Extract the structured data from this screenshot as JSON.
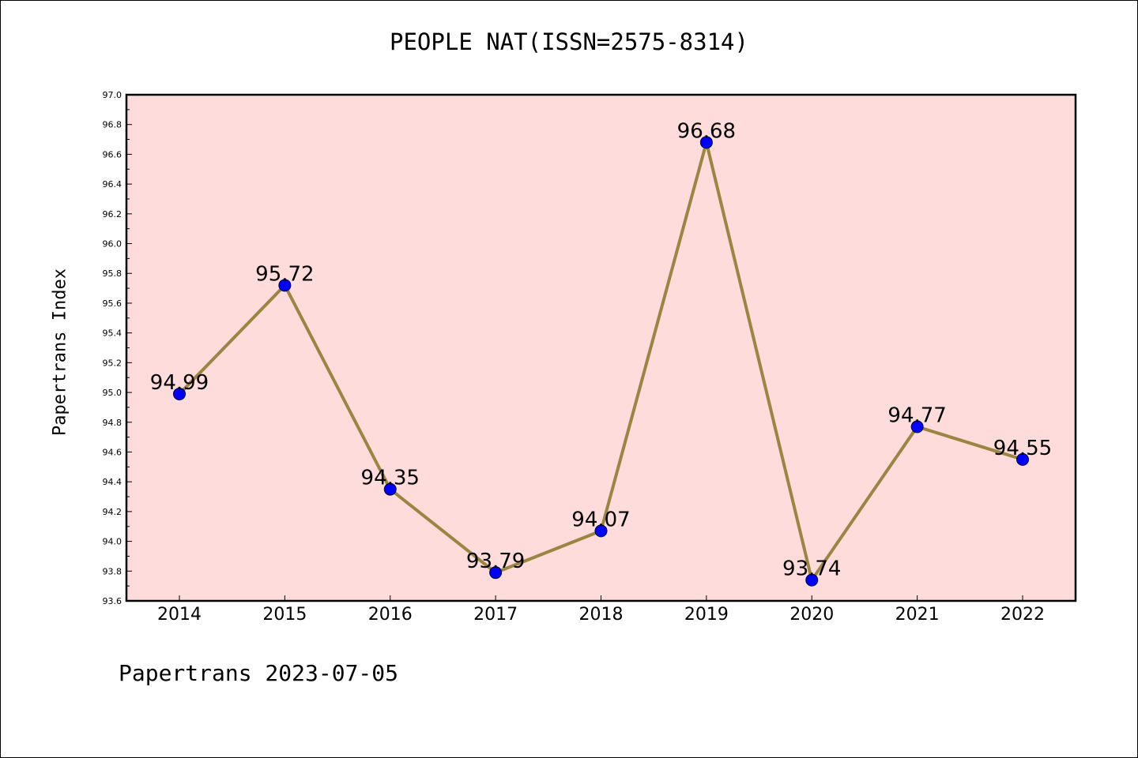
{
  "chart_data": {
    "type": "line",
    "title": "PEOPLE NAT(ISSN=2575-8314)",
    "xlabel": "",
    "ylabel": "Papertrans Index",
    "footer": "Papertrans 2023-07-05",
    "categories": [
      "2014",
      "2015",
      "2016",
      "2017",
      "2018",
      "2019",
      "2020",
      "2021",
      "2022"
    ],
    "series": [
      {
        "values": [
          94.99,
          95.72,
          94.35,
          93.79,
          94.07,
          96.68,
          93.74,
          94.77,
          94.55
        ]
      }
    ],
    "data_labels": [
      "94.99",
      "95.72",
      "94.35",
      "93.79",
      "94.07",
      "96.68",
      "93.74",
      "94.77",
      "94.55"
    ],
    "ylim": [
      93.6,
      97.0
    ],
    "yticks": [
      "93.6",
      "93.8",
      "94.0",
      "94.2",
      "94.4",
      "94.6",
      "94.8",
      "95.0",
      "95.2",
      "95.4",
      "95.6",
      "95.8",
      "96.0",
      "96.2",
      "96.4",
      "96.6",
      "96.8",
      "97.0"
    ],
    "grid": false,
    "colors": {
      "plot_background": "#fddcdb",
      "line": "#9c8540",
      "marker": "#0000ff"
    }
  }
}
